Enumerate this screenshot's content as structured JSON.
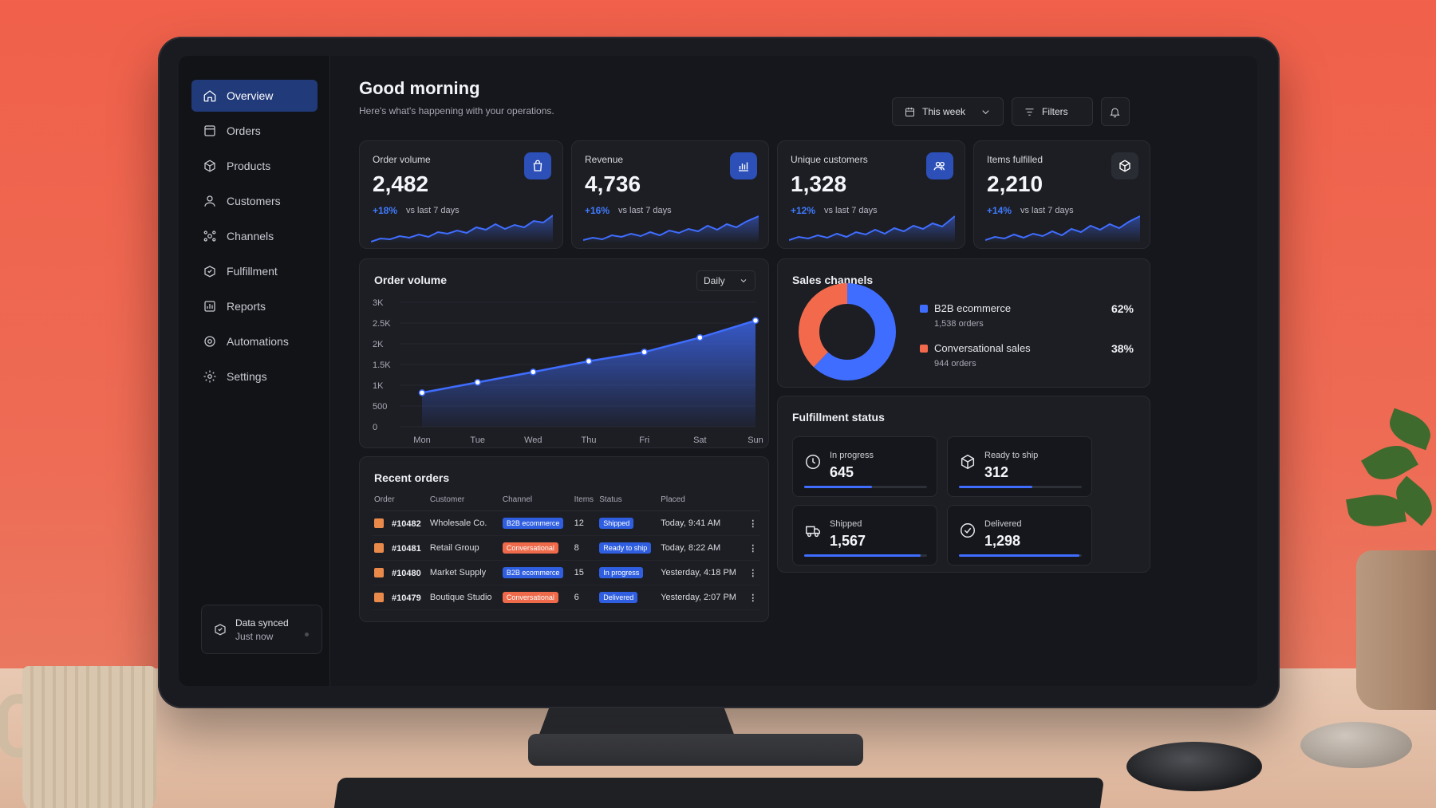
{
  "sidebar": {
    "items": [
      {
        "label": "Overview"
      },
      {
        "label": "Orders"
      },
      {
        "label": "Products"
      },
      {
        "label": "Customers"
      },
      {
        "label": "Channels"
      },
      {
        "label": "Fulfillment"
      },
      {
        "label": "Reports"
      },
      {
        "label": "Automations"
      },
      {
        "label": "Settings"
      }
    ],
    "sync": {
      "title": "Data synced",
      "subtitle": "Just now"
    }
  },
  "header": {
    "greeting": "Good morning",
    "subtitle": "Here's what's happening with your operations.",
    "date_range": "This week",
    "filters_label": "Filters"
  },
  "kpis": [
    {
      "label": "Order volume",
      "value": "2,482",
      "delta": "+18%",
      "note": "vs last 7 days",
      "icon": "shopping-bag-icon"
    },
    {
      "label": "Revenue",
      "value": "4,736",
      "delta": "+16%",
      "note": "vs last 7 days",
      "icon": "bar-chart-icon"
    },
    {
      "label": "Unique customers",
      "value": "1,328",
      "delta": "+12%",
      "note": "vs last 7 days",
      "icon": "users-icon"
    },
    {
      "label": "Items fulfilled",
      "value": "2,210",
      "delta": "+14%",
      "note": "vs last 7 days",
      "icon": "cube-icon"
    }
  ],
  "chart_data": {
    "type": "area",
    "title": "Order volume",
    "period_select": "Daily",
    "categories": [
      "Mon",
      "Tue",
      "Wed",
      "Thu",
      "Fri",
      "Sat",
      "Sun"
    ],
    "values": [
      820,
      1070,
      1320,
      1580,
      1800,
      2150,
      2560
    ],
    "yticks": [
      "3K",
      "2.5K",
      "2K",
      "1.5K",
      "1K",
      "500",
      "0"
    ],
    "ylim": [
      0,
      3000
    ],
    "color": "#3f6dff"
  },
  "sales_channels": {
    "title": "Sales channels",
    "channels": [
      {
        "name": "B2B ecommerce",
        "orders": "1,538 orders",
        "pct": "62%",
        "share": 0.62,
        "color": "#3f6dff"
      },
      {
        "name": "Conversational sales",
        "orders": "944 orders",
        "pct": "38%",
        "share": 0.38,
        "color": "#f26a4b"
      }
    ]
  },
  "fulfillment": {
    "title": "Fulfillment status",
    "tiles": [
      {
        "label": "In progress",
        "value": "645",
        "icon": "clock-icon",
        "fill": 0.55
      },
      {
        "label": "Ready to ship",
        "value": "312",
        "icon": "package-icon",
        "fill": 0.6
      },
      {
        "label": "Shipped",
        "value": "1,567",
        "icon": "truck-icon",
        "fill": 0.95
      },
      {
        "label": "Delivered",
        "value": "1,298",
        "icon": "check-circle-icon",
        "fill": 0.98
      }
    ]
  },
  "recent_orders": {
    "title": "Recent orders",
    "columns": [
      "Order",
      "Customer",
      "Channel",
      "Items",
      "Status",
      "Placed"
    ],
    "rows": [
      {
        "order": "#10482",
        "customer": "Wholesale Co.",
        "channel": "B2B ecommerce",
        "channel_color": "#2f5fe0",
        "items": "12",
        "status": "Shipped",
        "status_color": "#2f5fe0",
        "placed": "Today, 9:41 AM"
      },
      {
        "order": "#10481",
        "customer": "Retail Group",
        "channel": "Conversational",
        "channel_color": "#ee6a4a",
        "items": "8",
        "status": "Ready to ship",
        "status_color": "#2f5fe0",
        "placed": "Today, 8:22 AM"
      },
      {
        "order": "#10480",
        "customer": "Market Supply",
        "channel": "B2B ecommerce",
        "channel_color": "#2f5fe0",
        "items": "15",
        "status": "In progress",
        "status_color": "#2f5fe0",
        "placed": "Yesterday, 4:18 PM"
      },
      {
        "order": "#10479",
        "customer": "Boutique Studio",
        "channel": "Conversational",
        "channel_color": "#ee6a4a",
        "items": "6",
        "status": "Delivered",
        "status_color": "#2f5fe0",
        "placed": "Yesterday, 2:07 PM"
      }
    ]
  }
}
